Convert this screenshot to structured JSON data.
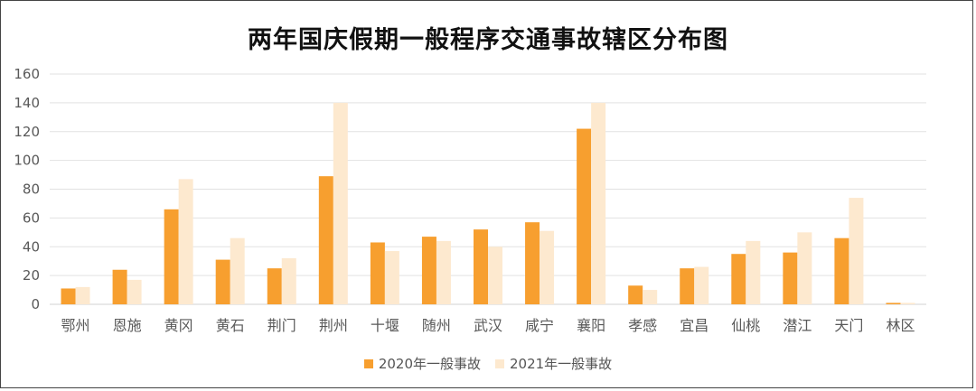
{
  "chart_data": {
    "type": "bar",
    "title": "两年国庆假期一般程序交通事故辖区分布图",
    "categories": [
      "鄂州",
      "恩施",
      "黄冈",
      "黄石",
      "荆门",
      "荆州",
      "十堰",
      "随州",
      "武汉",
      "咸宁",
      "襄阳",
      "孝感",
      "宜昌",
      "仙桃",
      "潜江",
      "天门",
      "林区"
    ],
    "series": [
      {
        "name": "2020年一般事故",
        "color": "#F79F2F",
        "values": [
          11,
          24,
          66,
          31,
          25,
          89,
          43,
          47,
          52,
          57,
          122,
          13,
          25,
          35,
          36,
          46,
          1
        ]
      },
      {
        "name": "2021年一般事故",
        "color": "#FDE9CF",
        "values": [
          12,
          17,
          87,
          46,
          32,
          140,
          37,
          44,
          40,
          51,
          140,
          10,
          26,
          44,
          50,
          74,
          1
        ]
      }
    ],
    "yticks": [
      0,
      20,
      40,
      60,
      80,
      100,
      120,
      140,
      160
    ],
    "ylim": [
      0,
      160
    ],
    "grid": true,
    "legend_position": "bottom"
  }
}
